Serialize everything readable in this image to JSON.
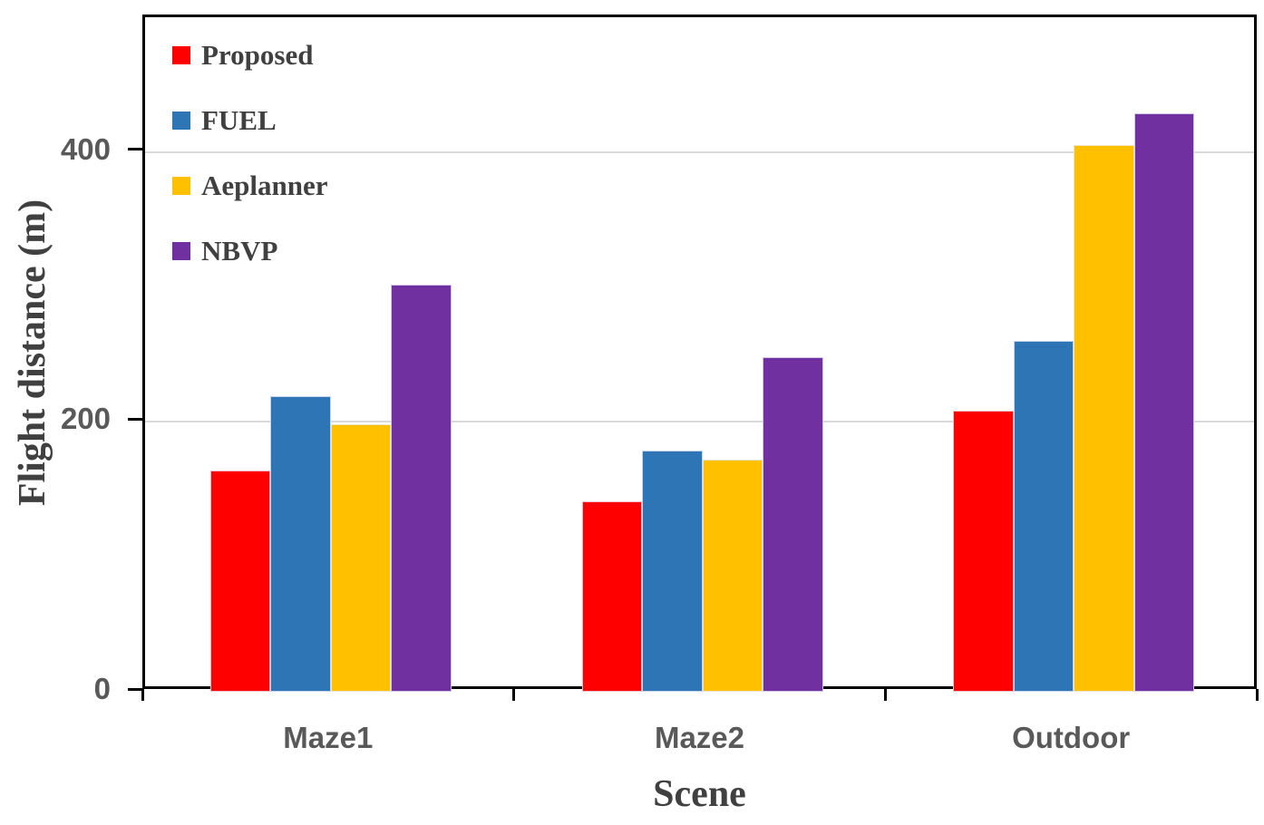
{
  "chart_data": {
    "type": "bar",
    "title": "",
    "xlabel": "Scene",
    "ylabel": "Flight distance (m)",
    "categories": [
      "Maze1",
      "Maze2",
      "Outdoor"
    ],
    "series": [
      {
        "name": "Proposed",
        "color": "#FF0000",
        "values": [
          164,
          141,
          208
        ]
      },
      {
        "name": "FUEL",
        "color": "#2E75B6",
        "values": [
          219,
          179,
          260
        ]
      },
      {
        "name": "Aeplanner",
        "color": "#FFC000",
        "values": [
          198,
          172,
          405
        ]
      },
      {
        "name": "NBVP",
        "color": "#7030A0",
        "values": [
          302,
          248,
          429
        ]
      }
    ],
    "ylim": [
      0,
      500
    ],
    "yticks": [
      0,
      200,
      400
    ],
    "grid": "horizontal",
    "legend_position": "top-left-inside",
    "colors": {
      "axis_line": "#000000",
      "gridline": "#D9D9D9",
      "tick_label": "#595959",
      "axis_title": "#404040",
      "legend_text": "#404040",
      "background": "#FFFFFF"
    }
  }
}
